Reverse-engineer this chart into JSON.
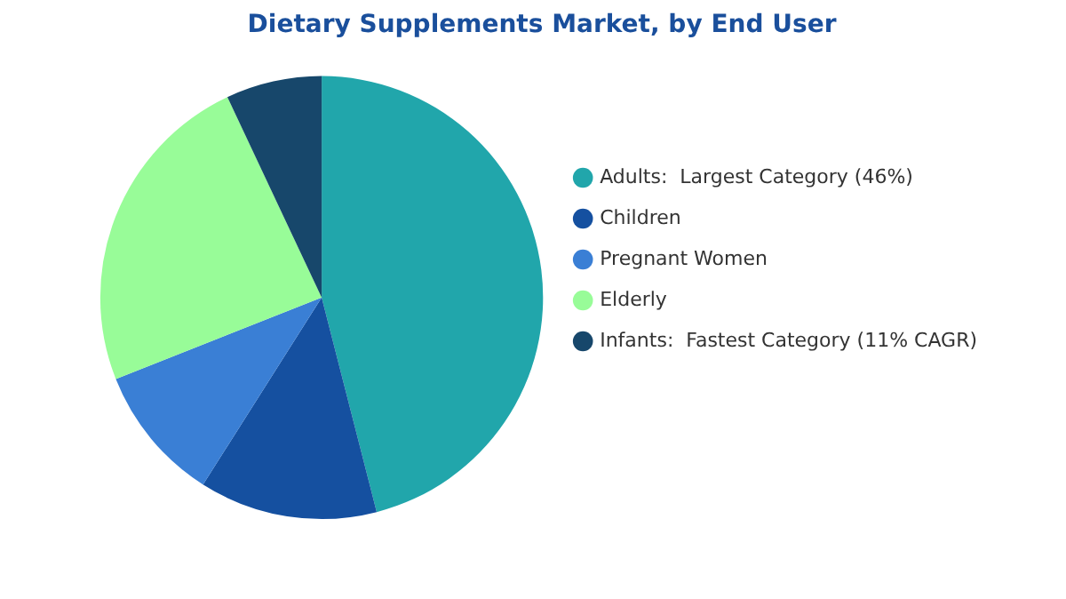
{
  "chart_data": {
    "type": "pie",
    "title": "Dietary Supplements Market, by End User",
    "categories": [
      "Adults:  Largest Category (46%)",
      "Children",
      "Pregnant Women",
      "Elderly",
      "Infants:  Fastest Category (11% CAGR)"
    ],
    "values": [
      46,
      13,
      10,
      24,
      7
    ],
    "colors": [
      "#21a6ab",
      "#1550a0",
      "#3a7fd5",
      "#98fc98",
      "#17476b"
    ],
    "legend": "right"
  }
}
